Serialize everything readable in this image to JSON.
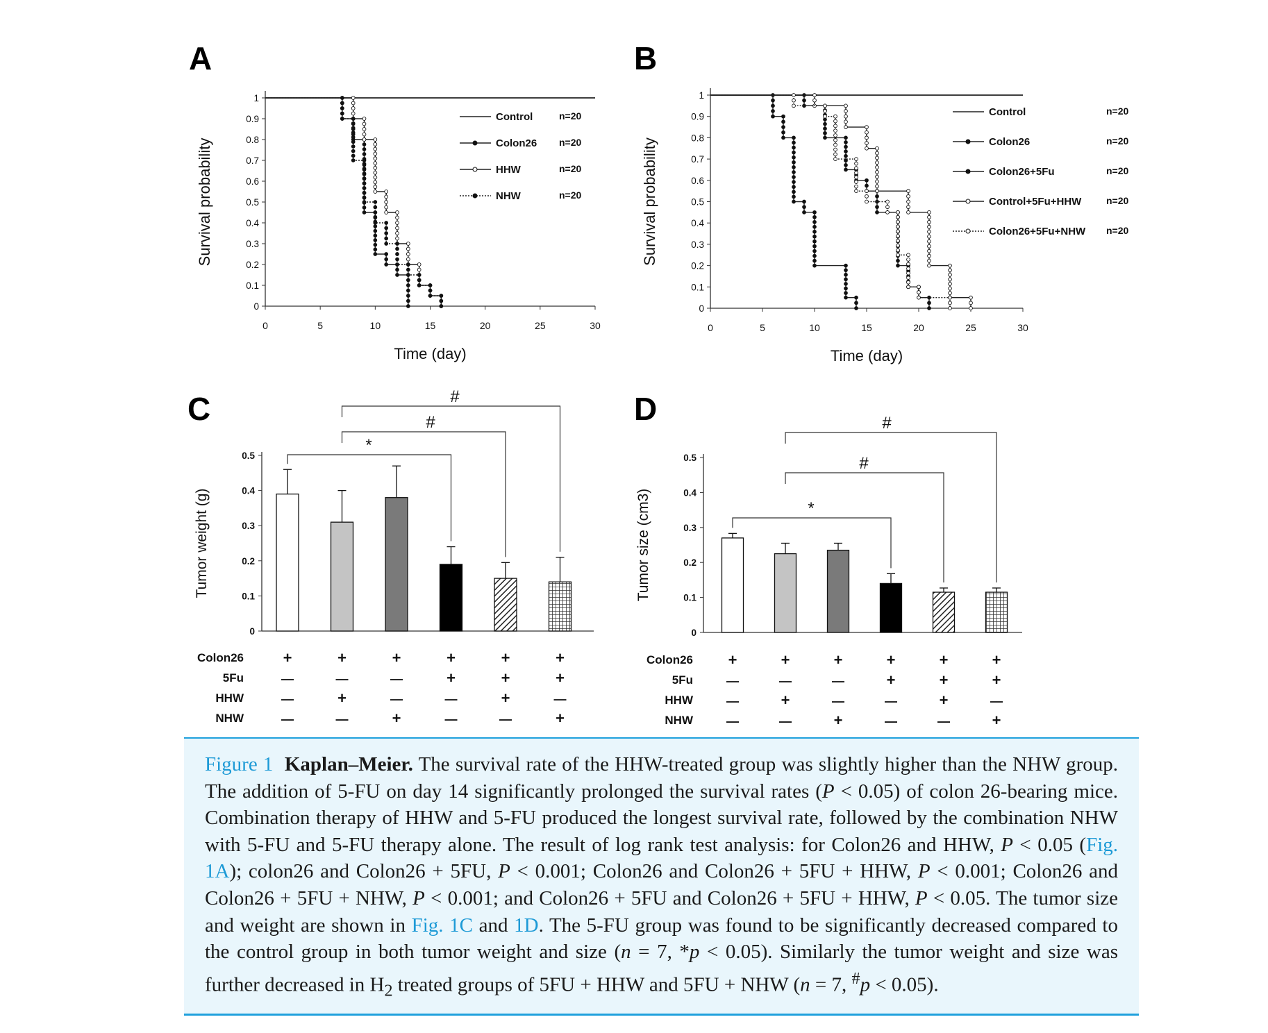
{
  "figure": {
    "panel_labels": [
      "A",
      "B",
      "C",
      "D"
    ]
  },
  "chart_data": [
    {
      "panel": "A",
      "type": "line",
      "subtype": "kaplan-meier step",
      "xlabel": "Time (day)",
      "ylabel": "Survival probability",
      "xlim": [
        0,
        30
      ],
      "ylim": [
        0,
        1
      ],
      "xticks": [
        "0",
        "5",
        "10",
        "15",
        "20",
        "25",
        "30"
      ],
      "yticks": [
        "0",
        "0.1",
        "0.2",
        "0.3",
        "0.4",
        "0.5",
        "0.6",
        "0.7",
        "0.8",
        "0.9",
        "1"
      ],
      "legend_position": "top-right",
      "series": [
        {
          "name": "Control",
          "n": "n=20",
          "marker": "none",
          "dash": "solid",
          "steps": [
            [
              0,
              1
            ],
            [
              30,
              1
            ]
          ]
        },
        {
          "name": "Colon26",
          "n": "n=20",
          "marker": "filled",
          "dash": "solid",
          "steps": [
            [
              0,
              1
            ],
            [
              7,
              0.9
            ],
            [
              8,
              0.8
            ],
            [
              9,
              0.45
            ],
            [
              10,
              0.25
            ],
            [
              11,
              0.2
            ],
            [
              12,
              0.15
            ],
            [
              13,
              0
            ]
          ]
        },
        {
          "name": "HHW",
          "n": "n=20",
          "marker": "open",
          "dash": "solid",
          "steps": [
            [
              0,
              1
            ],
            [
              8,
              0.9
            ],
            [
              9,
              0.8
            ],
            [
              10,
              0.55
            ],
            [
              11,
              0.45
            ],
            [
              12,
              0.3
            ],
            [
              13,
              0.2
            ],
            [
              14,
              0.1
            ],
            [
              15,
              0.05
            ],
            [
              16,
              0
            ]
          ]
        },
        {
          "name": "NHW",
          "n": "n=20",
          "marker": "filled",
          "dash": "dotted",
          "steps": [
            [
              0,
              1
            ],
            [
              7,
              0.9
            ],
            [
              8,
              0.7
            ],
            [
              9,
              0.5
            ],
            [
              10,
              0.4
            ],
            [
              11,
              0.3
            ],
            [
              12,
              0.2
            ],
            [
              13,
              0.15
            ],
            [
              14,
              0.1
            ],
            [
              15,
              0.05
            ],
            [
              16,
              0
            ]
          ]
        }
      ]
    },
    {
      "panel": "B",
      "type": "line",
      "subtype": "kaplan-meier step",
      "xlabel": "Time (day)",
      "ylabel": "Survival probability",
      "xlim": [
        0,
        30
      ],
      "ylim": [
        0,
        1
      ],
      "xticks": [
        "0",
        "5",
        "10",
        "15",
        "20",
        "25",
        "30"
      ],
      "yticks": [
        "0",
        "0.1",
        "0.2",
        "0.3",
        "0.4",
        "0.5",
        "0.6",
        "0.7",
        "0.8",
        "0.9",
        "1"
      ],
      "legend_position": "right",
      "series": [
        {
          "name": "Control",
          "n": "n=20",
          "marker": "none",
          "dash": "solid",
          "steps": [
            [
              0,
              1
            ],
            [
              30,
              1
            ]
          ]
        },
        {
          "name": "Colon26",
          "n": "n=20",
          "marker": "filled",
          "dash": "solid",
          "steps": [
            [
              0,
              1
            ],
            [
              6,
              0.9
            ],
            [
              7,
              0.8
            ],
            [
              8,
              0.5
            ],
            [
              9,
              0.45
            ],
            [
              10,
              0.2
            ],
            [
              13,
              0.05
            ],
            [
              14,
              0
            ]
          ]
        },
        {
          "name": "Colon26+5Fu",
          "n": "n=20",
          "marker": "filled",
          "dash": "solid",
          "steps": [
            [
              0,
              1
            ],
            [
              9,
              0.95
            ],
            [
              11,
              0.8
            ],
            [
              13,
              0.65
            ],
            [
              14,
              0.6
            ],
            [
              15,
              0.55
            ],
            [
              16,
              0.45
            ],
            [
              18,
              0.2
            ],
            [
              19,
              0.1
            ],
            [
              20,
              0.05
            ],
            [
              21,
              0
            ]
          ]
        },
        {
          "name": "Control+5Fu+HHW",
          "n": "n=20",
          "marker": "open",
          "dash": "solid",
          "steps": [
            [
              0,
              1
            ],
            [
              10,
              0.95
            ],
            [
              13,
              0.85
            ],
            [
              15,
              0.75
            ],
            [
              16,
              0.55
            ],
            [
              19,
              0.45
            ],
            [
              21,
              0.2
            ],
            [
              23,
              0.05
            ],
            [
              25,
              0
            ]
          ]
        },
        {
          "name": "Colon26+5Fu+NHW",
          "n": "n=20",
          "marker": "open",
          "dash": "dotted",
          "steps": [
            [
              0,
              1
            ],
            [
              8,
              0.95
            ],
            [
              11,
              0.9
            ],
            [
              12,
              0.7
            ],
            [
              14,
              0.55
            ],
            [
              15,
              0.5
            ],
            [
              17,
              0.45
            ],
            [
              18,
              0.25
            ],
            [
              19,
              0.1
            ],
            [
              20,
              0.05
            ],
            [
              23,
              0
            ]
          ]
        }
      ]
    },
    {
      "panel": "C",
      "type": "bar",
      "ylabel": "Tumor weight (g)",
      "ylim": [
        0,
        0.5
      ],
      "yticks": [
        "0",
        "0.1",
        "0.2",
        "0.3",
        "0.4",
        "0.5"
      ],
      "values": [
        0.39,
        0.31,
        0.38,
        0.19,
        0.15,
        0.14
      ],
      "errors": [
        0.07,
        0.09,
        0.09,
        0.05,
        0.045,
        0.07
      ],
      "fills": [
        "white",
        "lightgray",
        "darkgray",
        "black",
        "hatch",
        "grid"
      ],
      "significance": [
        {
          "from": 0,
          "to": 3,
          "label": "*"
        },
        {
          "from": 1,
          "to": 4,
          "label": "#"
        },
        {
          "from": 1,
          "to": 5,
          "label": "#"
        }
      ],
      "treatment_rows": [
        {
          "label": "Colon26",
          "marks": [
            "+",
            "+",
            "+",
            "+",
            "+",
            "+"
          ]
        },
        {
          "label": "5Fu",
          "marks": [
            "—",
            "—",
            "—",
            "+",
            "+",
            "+"
          ]
        },
        {
          "label": "HHW",
          "marks": [
            "—",
            "+",
            "—",
            "—",
            "+",
            "—"
          ]
        },
        {
          "label": "NHW",
          "marks": [
            "—",
            "—",
            "+",
            "—",
            "—",
            "+"
          ]
        }
      ]
    },
    {
      "panel": "D",
      "type": "bar",
      "ylabel": "Tumor size (cm3)",
      "ylim": [
        0,
        0.5
      ],
      "yticks": [
        "0",
        "0.1",
        "0.2",
        "0.3",
        "0.4",
        "0.5"
      ],
      "values": [
        0.27,
        0.225,
        0.235,
        0.14,
        0.115,
        0.115
      ],
      "errors": [
        0.013,
        0.03,
        0.02,
        0.028,
        0.012,
        0.012
      ],
      "fills": [
        "white",
        "lightgray",
        "darkgray",
        "black",
        "hatch",
        "grid"
      ],
      "significance": [
        {
          "from": 0,
          "to": 3,
          "label": "*"
        },
        {
          "from": 1,
          "to": 4,
          "label": "#"
        },
        {
          "from": 1,
          "to": 5,
          "label": "#"
        }
      ],
      "treatment_rows": [
        {
          "label": "Colon26",
          "marks": [
            "+",
            "+",
            "+",
            "+",
            "+",
            "+"
          ]
        },
        {
          "label": "5Fu",
          "marks": [
            "—",
            "—",
            "—",
            "+",
            "+",
            "+"
          ]
        },
        {
          "label": "HHW",
          "marks": [
            "—",
            "+",
            "—",
            "—",
            "+",
            "—"
          ]
        },
        {
          "label": "NHW",
          "marks": [
            "—",
            "—",
            "+",
            "—",
            "—",
            "+"
          ]
        }
      ]
    }
  ],
  "caption": {
    "figure_label": "Figure 1",
    "title": "Kaplan–Meier.",
    "t1": " The survival rate of the HHW-treated group was slightly higher than the NHW group. The addition of 5-FU on day 14 significantly prolonged the survival rates (",
    "p1": "P",
    "t2": " < 0.05) of colon 26-bearing mice. Combination therapy of HHW and 5-FU produced the longest survival rate, followed by the combination NHW with 5-FU and 5-FU therapy alone. The result of log rank test analysis: for Colon26 and HHW, ",
    "p2": "P",
    "t3": " < 0.05 (",
    "link1": "Fig. 1A",
    "t4": "); colon26 and Colon26 + 5FU, ",
    "p3": "P",
    "t5": " < 0.001; Colon26 and Colon26 + 5FU + HHW, ",
    "p4": "P",
    "t6": " < 0.001; Colon26 and Colon26 + 5FU + NHW, ",
    "p5": "P",
    "t7": " < 0.001; and Colon26 + 5FU and Colon26 + 5FU + HHW, ",
    "p6": "P",
    "t8": " < 0.05. The tumor size and weight are shown in ",
    "link2": "Fig. 1C",
    "t9": " and ",
    "link3": "1D",
    "t10": ". The 5-FU group was found to be significantly decreased compared to the control group in both tumor weight and size (",
    "n1": "n",
    "t11": " = 7, *",
    "p7": "p",
    "t12": " < 0.05). Similarly the tumor weight and size was further decreased in H",
    "sub2": "2",
    "t13": " treated groups of 5FU + HHW and 5FU + NHW (",
    "n2": "n",
    "t14": " = 7, ",
    "hash": "#",
    "p8": "p",
    "t15": " < 0.05)."
  }
}
